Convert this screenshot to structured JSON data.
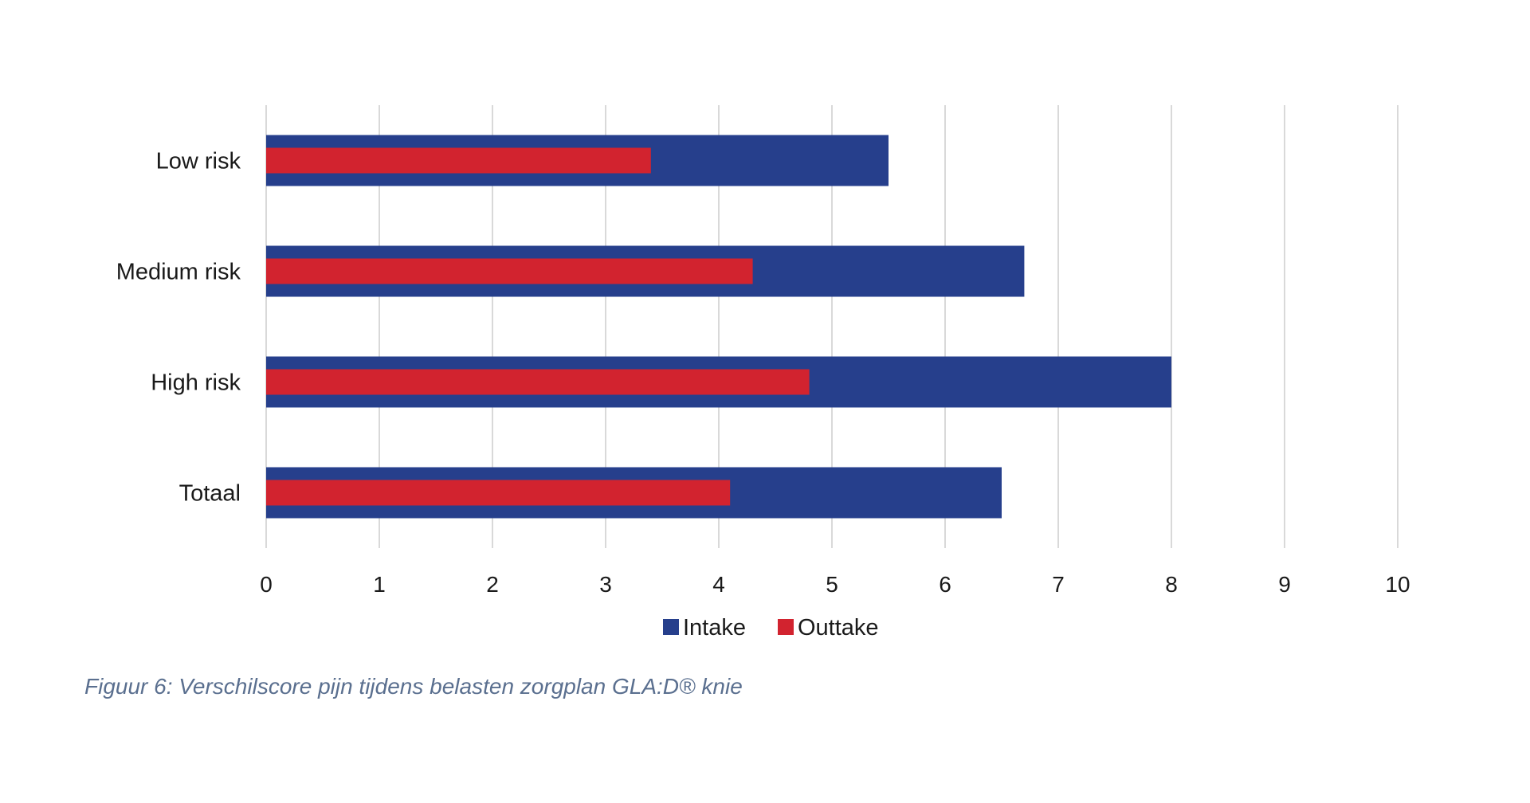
{
  "chart_data": {
    "type": "bar",
    "orientation": "horizontal",
    "categories": [
      "Low risk",
      "Medium risk",
      "High risk",
      "Totaal"
    ],
    "series": [
      {
        "name": "Intake",
        "values": [
          5.5,
          6.7,
          8.0,
          6.5
        ],
        "color": "#263f8c"
      },
      {
        "name": "Outtake",
        "values": [
          3.4,
          4.3,
          4.8,
          4.1
        ],
        "color": "#d2232f"
      }
    ],
    "xlim": [
      0,
      10
    ],
    "xticks": [
      "0",
      "1",
      "2",
      "3",
      "4",
      "5",
      "6",
      "7",
      "8",
      "9",
      "10"
    ],
    "grid": true,
    "legend_position": "bottom"
  },
  "caption": "Figuur 6: Verschilscore pijn tijdens belasten zorgplan GLA:D® knie"
}
